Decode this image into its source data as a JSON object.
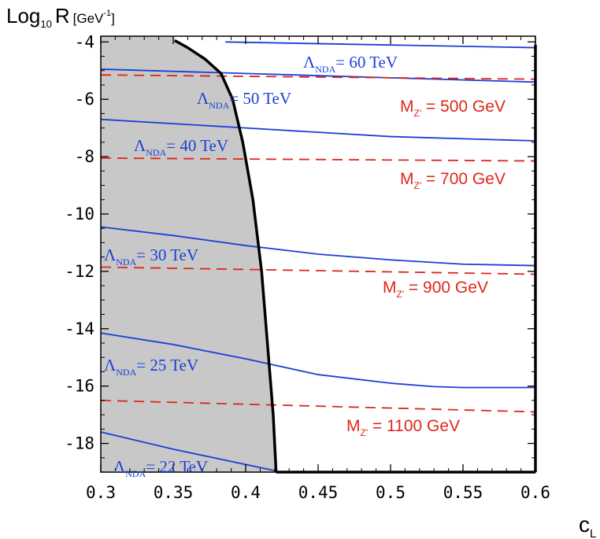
{
  "chart_data": {
    "type": "line",
    "xlabel": "c",
    "xlabel_sub": "L",
    "ylabel_parts": {
      "log": "Log",
      "base": "10",
      "var": "R",
      "unit_open": "[GeV",
      "unit_exp": "-1",
      "unit_close": "]"
    },
    "xlim": [
      0.3,
      0.6
    ],
    "ylim": [
      -19.0,
      -3.8
    ],
    "x_ticks": [
      {
        "value": 0.3,
        "label": "0.3"
      },
      {
        "value": 0.35,
        "label": "0.35"
      },
      {
        "value": 0.4,
        "label": "0.4"
      },
      {
        "value": 0.45,
        "label": "0.45"
      },
      {
        "value": 0.5,
        "label": "0.5"
      },
      {
        "value": 0.55,
        "label": "0.55"
      },
      {
        "value": 0.6,
        "label": "0.6"
      }
    ],
    "y_ticks": [
      {
        "value": -4,
        "label": "-4"
      },
      {
        "value": -6,
        "label": "-6"
      },
      {
        "value": -8,
        "label": "-8"
      },
      {
        "value": -10,
        "label": "-10"
      },
      {
        "value": -12,
        "label": "-12"
      },
      {
        "value": -14,
        "label": "-14"
      },
      {
        "value": -16,
        "label": "-16"
      },
      {
        "value": -18,
        "label": "-18"
      }
    ],
    "excluded_region": {
      "color": "#c8c8c8",
      "boundary": [
        [
          0.351,
          -3.95
        ],
        [
          0.36,
          -4.2
        ],
        [
          0.372,
          -4.6
        ],
        [
          0.383,
          -5.1
        ],
        [
          0.391,
          -6.0
        ],
        [
          0.398,
          -7.5
        ],
        [
          0.405,
          -9.5
        ],
        [
          0.411,
          -12.0
        ],
        [
          0.415,
          -14.5
        ],
        [
          0.419,
          -17.0
        ],
        [
          0.421,
          -19.0
        ]
      ]
    },
    "lambda_series": [
      {
        "label_pre": "Λ",
        "label_sub": "NDA",
        "label_post": "= 60 TeV",
        "x": [
          0.386,
          0.6
        ],
        "y": [
          -4.0,
          -4.2
        ]
      },
      {
        "label_pre": "Λ",
        "label_sub": "NDA",
        "label_post": "= 50 TeV",
        "x": [
          0.3,
          0.4,
          0.5,
          0.6
        ],
        "y": [
          -4.95,
          -5.1,
          -5.25,
          -5.4
        ]
      },
      {
        "label_pre": "Λ",
        "label_sub": "NDA",
        "label_post": "= 40 TeV",
        "x": [
          0.3,
          0.4,
          0.5,
          0.6
        ],
        "y": [
          -6.7,
          -7.0,
          -7.3,
          -7.45
        ]
      },
      {
        "label_pre": "Λ",
        "label_sub": "NDA",
        "label_post": "= 30 TeV",
        "x": [
          0.3,
          0.35,
          0.4,
          0.45,
          0.5,
          0.55,
          0.6
        ],
        "y": [
          -10.45,
          -10.75,
          -11.1,
          -11.4,
          -11.6,
          -11.75,
          -11.8
        ]
      },
      {
        "label_pre": "Λ",
        "label_sub": "NDA",
        "label_post": "= 25 TeV",
        "x": [
          0.3,
          0.35,
          0.4,
          0.45,
          0.5,
          0.53,
          0.55,
          0.6
        ],
        "y": [
          -14.15,
          -14.55,
          -15.05,
          -15.6,
          -15.9,
          -16.02,
          -16.05,
          -16.05
        ]
      },
      {
        "label_pre": "Λ",
        "label_sub": "NDA",
        "label_post": "= 22 TeV",
        "x": [
          0.3,
          0.35,
          0.42
        ],
        "y": [
          -17.6,
          -18.2,
          -18.95
        ]
      }
    ],
    "mz_series": [
      {
        "label_pre": "M",
        "label_sub": "Z'",
        "label_post": " = 500 GeV",
        "x": [
          0.3,
          0.6
        ],
        "y": [
          -5.15,
          -5.3
        ]
      },
      {
        "label_pre": "M",
        "label_sub": "Z'",
        "label_post": " = 700 GeV",
        "x": [
          0.3,
          0.6
        ],
        "y": [
          -8.05,
          -8.15
        ]
      },
      {
        "label_pre": "M",
        "label_sub": "Z'",
        "label_post": " = 900 GeV",
        "x": [
          0.3,
          0.6
        ],
        "y": [
          -11.85,
          -12.1
        ]
      },
      {
        "label_pre": "M",
        "label_sub": "Z'",
        "label_post": " = 1100 GeV",
        "x": [
          0.3,
          0.6
        ],
        "y": [
          -16.5,
          -16.9
        ]
      }
    ],
    "boundary_lines": {
      "vertical_x": 0.6,
      "bottom_y": -19.0
    },
    "colors": {
      "lambda": "#1a3fd6",
      "mz": "#e0261b",
      "region": "#c8c8c8",
      "boundary": "#000000"
    }
  }
}
